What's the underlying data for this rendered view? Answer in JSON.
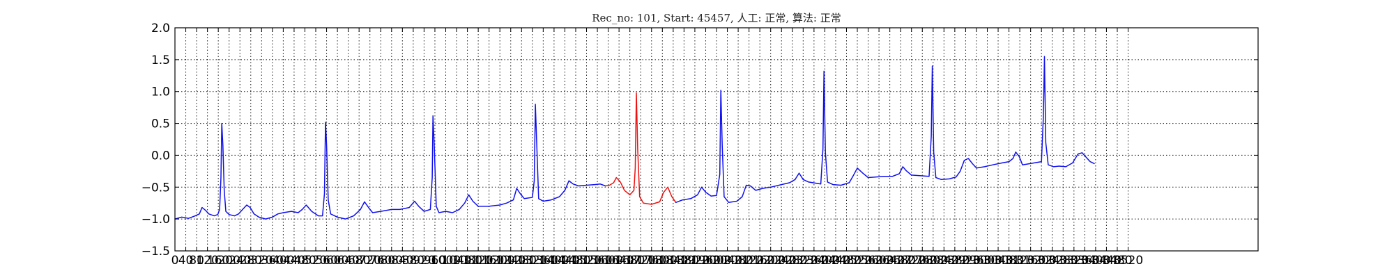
{
  "chart_data": {
    "type": "line",
    "title": "Rec_no: 101, Start: 45457, 人工: 正常, 算法: 正常",
    "xlabel": "",
    "ylabel": "",
    "xlim": [
      0,
      4000
    ],
    "ylim": [
      -1.5,
      2.0
    ],
    "grid": true,
    "yticks": [
      -1.5,
      -1.0,
      -0.5,
      0.0,
      0.5,
      1.0,
      1.5,
      2.0
    ],
    "ytick_labels": [
      "−1.5",
      "−1.0",
      "−0.5",
      "0.0",
      "0.5",
      "1.0",
      "1.5",
      "2.0"
    ],
    "xtick_step": 40,
    "xtick_max": 3520,
    "colors": {
      "normal": "#1010ee",
      "highlight": "#ee1111",
      "frame": "#000000"
    },
    "series": [
      {
        "color": "normal",
        "points": [
          [
            0,
            -1.0
          ],
          [
            25,
            -0.97
          ],
          [
            50,
            -0.99
          ],
          [
            75,
            -0.95
          ],
          [
            90,
            -0.92
          ],
          [
            100,
            -0.82
          ],
          [
            112,
            -0.86
          ],
          [
            125,
            -0.92
          ],
          [
            145,
            -0.95
          ],
          [
            158,
            -0.93
          ],
          [
            165,
            -0.85
          ],
          [
            170,
            -0.35
          ],
          [
            173,
            0.5
          ],
          [
            177,
            0.15
          ],
          [
            182,
            -0.55
          ],
          [
            188,
            -0.88
          ],
          [
            200,
            -0.93
          ],
          [
            220,
            -0.95
          ],
          [
            235,
            -0.92
          ],
          [
            250,
            -0.85
          ],
          [
            265,
            -0.78
          ],
          [
            278,
            -0.82
          ],
          [
            292,
            -0.92
          ],
          [
            310,
            -0.97
          ],
          [
            335,
            -1.0
          ],
          [
            360,
            -0.97
          ],
          [
            380,
            -0.92
          ],
          [
            400,
            -0.9
          ],
          [
            430,
            -0.88
          ],
          [
            455,
            -0.9
          ],
          [
            470,
            -0.85
          ],
          [
            485,
            -0.78
          ],
          [
            505,
            -0.88
          ],
          [
            530,
            -0.95
          ],
          [
            545,
            -0.95
          ],
          [
            552,
            -0.6
          ],
          [
            556,
            0.52
          ],
          [
            560,
            0.15
          ],
          [
            566,
            -0.7
          ],
          [
            575,
            -0.92
          ],
          [
            600,
            -0.97
          ],
          [
            630,
            -1.0
          ],
          [
            660,
            -0.95
          ],
          [
            685,
            -0.85
          ],
          [
            700,
            -0.73
          ],
          [
            715,
            -0.82
          ],
          [
            730,
            -0.9
          ],
          [
            760,
            -0.88
          ],
          [
            800,
            -0.85
          ],
          [
            830,
            -0.85
          ],
          [
            865,
            -0.82
          ],
          [
            885,
            -0.72
          ],
          [
            900,
            -0.8
          ],
          [
            920,
            -0.88
          ],
          [
            943,
            -0.85
          ],
          [
            950,
            -0.35
          ],
          [
            953,
            0.62
          ],
          [
            958,
            0.1
          ],
          [
            965,
            -0.8
          ],
          [
            975,
            -0.9
          ],
          [
            1000,
            -0.88
          ],
          [
            1025,
            -0.9
          ],
          [
            1050,
            -0.85
          ],
          [
            1070,
            -0.75
          ],
          [
            1085,
            -0.62
          ],
          [
            1100,
            -0.72
          ],
          [
            1120,
            -0.8
          ],
          [
            1160,
            -0.8
          ],
          [
            1200,
            -0.78
          ],
          [
            1225,
            -0.75
          ],
          [
            1250,
            -0.7
          ],
          [
            1262,
            -0.52
          ],
          [
            1275,
            -0.6
          ],
          [
            1290,
            -0.68
          ],
          [
            1320,
            -0.66
          ],
          [
            1327,
            -0.4
          ],
          [
            1331,
            0.8
          ],
          [
            1336,
            0.2
          ],
          [
            1343,
            -0.68
          ],
          [
            1360,
            -0.72
          ],
          [
            1390,
            -0.7
          ],
          [
            1420,
            -0.65
          ],
          [
            1440,
            -0.55
          ],
          [
            1455,
            -0.4
          ],
          [
            1470,
            -0.45
          ],
          [
            1490,
            -0.48
          ],
          [
            1520,
            -0.47
          ],
          [
            1550,
            -0.46
          ],
          [
            1570,
            -0.45
          ],
          [
            1590,
            -0.48
          ]
        ]
      },
      {
        "color": "highlight",
        "points": [
          [
            1590,
            -0.48
          ],
          [
            1605,
            -0.47
          ],
          [
            1620,
            -0.43
          ],
          [
            1630,
            -0.35
          ],
          [
            1645,
            -0.42
          ],
          [
            1660,
            -0.55
          ],
          [
            1680,
            -0.62
          ],
          [
            1695,
            -0.55
          ],
          [
            1700,
            -0.2
          ],
          [
            1704,
            0.98
          ],
          [
            1709,
            0.1
          ],
          [
            1716,
            -0.65
          ],
          [
            1730,
            -0.75
          ],
          [
            1760,
            -0.77
          ],
          [
            1790,
            -0.73
          ],
          [
            1805,
            -0.58
          ],
          [
            1820,
            -0.5
          ],
          [
            1835,
            -0.65
          ],
          [
            1850,
            -0.74
          ]
        ]
      },
      {
        "color": "normal",
        "points": [
          [
            1850,
            -0.74
          ],
          [
            1875,
            -0.7
          ],
          [
            1905,
            -0.68
          ],
          [
            1930,
            -0.62
          ],
          [
            1945,
            -0.5
          ],
          [
            1960,
            -0.58
          ],
          [
            1980,
            -0.64
          ],
          [
            2000,
            -0.63
          ],
          [
            2012,
            -0.3
          ],
          [
            2016,
            1.02
          ],
          [
            2021,
            0.15
          ],
          [
            2028,
            -0.65
          ],
          [
            2045,
            -0.74
          ],
          [
            2075,
            -0.72
          ],
          [
            2095,
            -0.65
          ],
          [
            2110,
            -0.47
          ],
          [
            2125,
            -0.48
          ],
          [
            2145,
            -0.55
          ],
          [
            2170,
            -0.52
          ],
          [
            2200,
            -0.5
          ],
          [
            2240,
            -0.46
          ],
          [
            2270,
            -0.43
          ],
          [
            2290,
            -0.38
          ],
          [
            2305,
            -0.28
          ],
          [
            2320,
            -0.38
          ],
          [
            2340,
            -0.42
          ],
          [
            2385,
            -0.45
          ],
          [
            2393,
            0.1
          ],
          [
            2397,
            1.32
          ],
          [
            2402,
            0.05
          ],
          [
            2410,
            -0.42
          ],
          [
            2430,
            -0.46
          ],
          [
            2460,
            -0.47
          ],
          [
            2490,
            -0.43
          ],
          [
            2505,
            -0.32
          ],
          [
            2520,
            -0.2
          ],
          [
            2540,
            -0.28
          ],
          [
            2560,
            -0.35
          ],
          [
            2590,
            -0.34
          ],
          [
            2620,
            -0.33
          ],
          [
            2650,
            -0.33
          ],
          [
            2675,
            -0.29
          ],
          [
            2688,
            -0.18
          ],
          [
            2700,
            -0.24
          ],
          [
            2720,
            -0.31
          ],
          [
            2785,
            -0.33
          ],
          [
            2793,
            0.3
          ],
          [
            2797,
            1.4
          ],
          [
            2802,
            0.05
          ],
          [
            2810,
            -0.35
          ],
          [
            2830,
            -0.38
          ],
          [
            2860,
            -0.37
          ],
          [
            2885,
            -0.34
          ],
          [
            2900,
            -0.25
          ],
          [
            2915,
            -0.08
          ],
          [
            2930,
            -0.05
          ],
          [
            2945,
            -0.13
          ],
          [
            2960,
            -0.2
          ],
          [
            2990,
            -0.18
          ],
          [
            3020,
            -0.15
          ],
          [
            3055,
            -0.12
          ],
          [
            3080,
            -0.1
          ],
          [
            3095,
            -0.05
          ],
          [
            3105,
            0.05
          ],
          [
            3118,
            -0.02
          ],
          [
            3130,
            -0.15
          ],
          [
            3200,
            -0.1
          ],
          [
            3207,
            0.6
          ],
          [
            3211,
            1.55
          ],
          [
            3216,
            0.2
          ],
          [
            3225,
            -0.15
          ],
          [
            3245,
            -0.18
          ],
          [
            3265,
            -0.17
          ],
          [
            3290,
            -0.18
          ],
          [
            3315,
            -0.12
          ],
          [
            3335,
            0.02
          ],
          [
            3350,
            0.04
          ],
          [
            3365,
            -0.03
          ],
          [
            3380,
            -0.1
          ],
          [
            3395,
            -0.13
          ]
        ]
      }
    ]
  }
}
